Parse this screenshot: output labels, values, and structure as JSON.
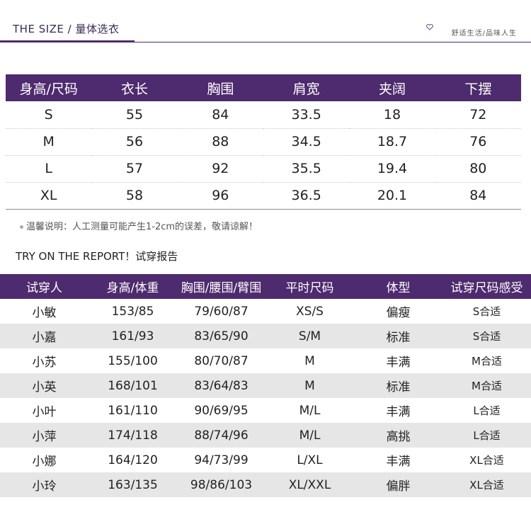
{
  "header": {
    "title": "THE SIZE / 量体选衣",
    "brand": "舒适生活/品味人生",
    "accent_color": "#4e2a6e"
  },
  "size_table": {
    "columns": [
      "身高/尺码",
      "衣长",
      "胸围",
      "肩宽",
      "夹阔",
      "下摆"
    ],
    "rows": [
      [
        "S",
        "55",
        "84",
        "33.5",
        "18",
        "72"
      ],
      [
        "M",
        "56",
        "88",
        "34.5",
        "18.7",
        "76"
      ],
      [
        "L",
        "57",
        "92",
        "35.5",
        "19.4",
        "80"
      ],
      [
        "XL",
        "58",
        "96",
        "36.5",
        "20.1",
        "84"
      ]
    ]
  },
  "note": "温馨说明：人工测量可能产生1-2cm的误差，敬请谅解！",
  "try_section": {
    "title": "TRY ON THE REPORT！试穿报告"
  },
  "try_table": {
    "columns": [
      "试穿人",
      "身高/体重",
      "胸围/腰围/臂围",
      "平时尺码",
      "体型",
      "试穿尺码感受"
    ],
    "rows": [
      [
        "小敏",
        "153/85",
        "79/60/87",
        "XS/S",
        "偏瘦",
        "S合适"
      ],
      [
        "小嘉",
        "161/93",
        "83/65/90",
        "S/M",
        "标准",
        "S合适"
      ],
      [
        "小苏",
        "155/100",
        "80/70/87",
        "M",
        "丰满",
        "M合适"
      ],
      [
        "小英",
        "168/101",
        "83/64/83",
        "M",
        "标准",
        "M合适"
      ],
      [
        "小叶",
        "161/110",
        "90/69/95",
        "M/L",
        "丰满",
        "L合适"
      ],
      [
        "小萍",
        "174/118",
        "88/74/96",
        "M/L",
        "高挑",
        "L合适"
      ],
      [
        "小娜",
        "164/120",
        "94/73/99",
        "L/XL",
        "丰满",
        "XL合适"
      ],
      [
        "小玲",
        "163/135",
        "98/86/103",
        "XL/XXL",
        "偏胖",
        "XL合适"
      ]
    ]
  }
}
